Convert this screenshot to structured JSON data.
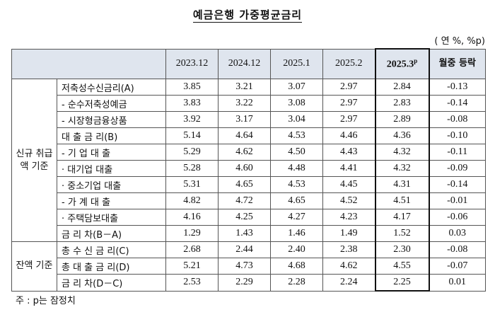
{
  "title": "예금은행 가중평균금리",
  "unit": "( 연 %, %p)",
  "headers": [
    "2023.12",
    "2024.12",
    "2025.1",
    "2025.2",
    "2025.3",
    "p",
    "월중 등락"
  ],
  "groups": {
    "new": "신규 취급액 기준",
    "balance": "잔액 기준"
  },
  "rows": [
    {
      "label": "저축성수신금리(A)",
      "values": [
        "3.85",
        "3.21",
        "3.07",
        "2.97",
        "2.84",
        "-0.13"
      ]
    },
    {
      "label": "- 순수저축성예금",
      "values": [
        "3.83",
        "3.22",
        "3.08",
        "2.97",
        "2.83",
        "-0.14"
      ]
    },
    {
      "label": "- 시장형금융상품",
      "values": [
        "3.92",
        "3.17",
        "3.04",
        "2.97",
        "2.89",
        "-0.08"
      ]
    },
    {
      "label": "대 출 금 리(B)",
      "values": [
        "5.14",
        "4.64",
        "4.53",
        "4.46",
        "4.36",
        "-0.10"
      ]
    },
    {
      "label": "- 기 업 대 출",
      "values": [
        "5.29",
        "4.62",
        "4.50",
        "4.43",
        "4.32",
        "-0.11"
      ]
    },
    {
      "label": "· 대기업 대출",
      "values": [
        "5.28",
        "4.60",
        "4.48",
        "4.41",
        "4.32",
        "-0.09"
      ]
    },
    {
      "label": "· 중소기업 대출",
      "values": [
        "5.31",
        "4.65",
        "4.53",
        "4.45",
        "4.31",
        "-0.14"
      ]
    },
    {
      "label": "- 가 계 대 출",
      "values": [
        "4.82",
        "4.72",
        "4.65",
        "4.52",
        "4.51",
        "-0.01"
      ]
    },
    {
      "label": "· 주택담보대출",
      "values": [
        "4.16",
        "4.25",
        "4.27",
        "4.23",
        "4.17",
        "-0.06"
      ]
    },
    {
      "label": "금 리 차(B－A)",
      "values": [
        "1.29",
        "1.43",
        "1.46",
        "1.49",
        "1.52",
        "0.03"
      ]
    },
    {
      "label": "총 수 신 금 리(C)",
      "values": [
        "2.68",
        "2.44",
        "2.40",
        "2.38",
        "2.30",
        "-0.08"
      ]
    },
    {
      "label": "총 대 출 금 리(D)",
      "values": [
        "5.21",
        "4.73",
        "4.68",
        "4.62",
        "4.55",
        "-0.07"
      ]
    },
    {
      "label": "금 리 차(D－C)",
      "values": [
        "2.53",
        "2.29",
        "2.28",
        "2.24",
        "2.25",
        "0.01"
      ]
    }
  ],
  "note": "주 : p는 잠정치"
}
